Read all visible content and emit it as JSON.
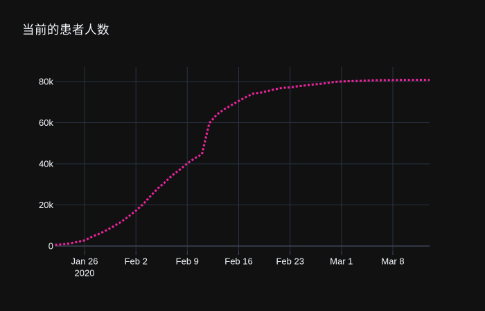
{
  "chart_data": {
    "type": "line",
    "title": "当前的患者人数",
    "series_name": "当前的患者人数",
    "line": {
      "color": "#e9239c",
      "style": "dotted",
      "width": 3.1
    },
    "x": [
      "2020-01-22",
      "2020-01-23",
      "2020-01-24",
      "2020-01-25",
      "2020-01-26",
      "2020-01-27",
      "2020-01-28",
      "2020-01-29",
      "2020-01-30",
      "2020-01-31",
      "2020-02-01",
      "2020-02-02",
      "2020-02-03",
      "2020-02-04",
      "2020-02-05",
      "2020-02-06",
      "2020-02-07",
      "2020-02-08",
      "2020-02-09",
      "2020-02-10",
      "2020-02-11",
      "2020-02-12",
      "2020-02-13",
      "2020-02-14",
      "2020-02-15",
      "2020-02-16",
      "2020-02-17",
      "2020-02-18",
      "2020-02-19",
      "2020-02-20",
      "2020-02-21",
      "2020-02-22",
      "2020-02-23",
      "2020-02-24",
      "2020-02-25",
      "2020-02-26",
      "2020-02-27",
      "2020-02-28",
      "2020-02-29",
      "2020-03-01",
      "2020-03-02",
      "2020-03-03",
      "2020-03-04",
      "2020-03-05",
      "2020-03-06",
      "2020-03-07",
      "2020-03-08",
      "2020-03-09",
      "2020-03-10",
      "2020-03-11",
      "2020-03-12",
      "2020-03-13"
    ],
    "values": [
      571,
      830,
      1287,
      1975,
      2744,
      4515,
      5974,
      7711,
      9692,
      11791,
      14380,
      17205,
      20438,
      24324,
      28018,
      31161,
      34546,
      37198,
      40171,
      42638,
      44653,
      59804,
      63851,
      66492,
      68500,
      70548,
      72436,
      74185,
      74576,
      75465,
      76288,
      76936,
      77150,
      77658,
      78064,
      78497,
      78824,
      79251,
      79824,
      80026,
      80151,
      80270,
      80409,
      80552,
      80651,
      80695,
      80735,
      80754,
      80778,
      80793,
      80813,
      80824
    ],
    "x_ticks": [
      {
        "label": "Jan 26",
        "sublabel": "2020",
        "day": 4
      },
      {
        "label": "Feb 2",
        "sublabel": "",
        "day": 11
      },
      {
        "label": "Feb 9",
        "sublabel": "",
        "day": 18
      },
      {
        "label": "Feb 16",
        "sublabel": "",
        "day": 25
      },
      {
        "label": "Feb 23",
        "sublabel": "",
        "day": 32
      },
      {
        "label": "Mar 1",
        "sublabel": "",
        "day": 39
      },
      {
        "label": "Mar 8",
        "sublabel": "",
        "day": 46
      }
    ],
    "y_ticks": [
      {
        "label": "0",
        "value": 0
      },
      {
        "label": "20k",
        "value": 20000
      },
      {
        "label": "40k",
        "value": 40000
      },
      {
        "label": "60k",
        "value": 60000
      },
      {
        "label": "80k",
        "value": 80000
      }
    ],
    "ylim": [
      -2350,
      87050
    ],
    "xlim_days": [
      0,
      51
    ],
    "grid": true,
    "legend_position": "none",
    "colors": {
      "background": "#111111",
      "grid": "#283442",
      "zeroline": "#3b4758",
      "tick": "#3b4758",
      "text": "#f2f5fa",
      "title": "#f2f5fa"
    }
  }
}
